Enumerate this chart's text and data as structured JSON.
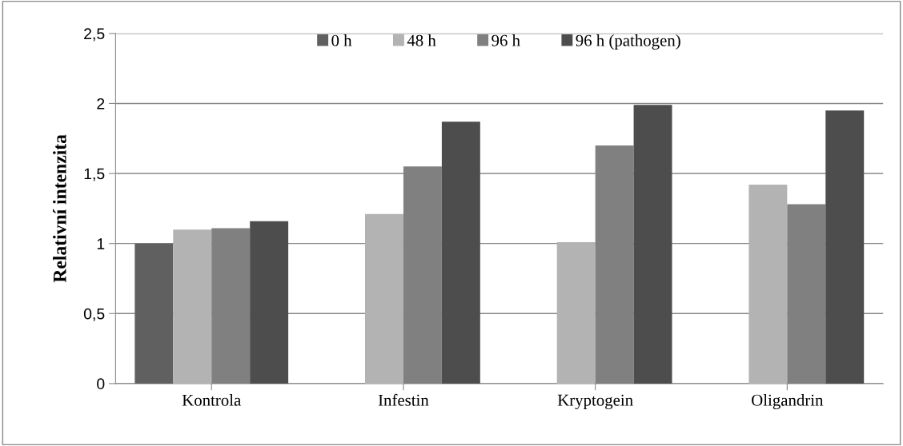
{
  "chart_data": {
    "type": "bar",
    "ylabel": "Relativní intenzita",
    "categories": [
      "Kontrola",
      "Infestin",
      "Kryptogein",
      "Oligandrin"
    ],
    "series": [
      {
        "name": "0 h",
        "color": "#606060",
        "values": [
          1.0,
          null,
          null,
          null
        ]
      },
      {
        "name": "48 h",
        "color": "#b3b3b3",
        "values": [
          1.1,
          1.21,
          1.01,
          1.42
        ]
      },
      {
        "name": "96 h",
        "color": "#808080",
        "values": [
          1.11,
          1.55,
          1.7,
          1.28
        ]
      },
      {
        "name": "96 h (pathogen)",
        "color": "#4d4d4d",
        "values": [
          1.16,
          1.87,
          1.99,
          1.95
        ]
      }
    ],
    "ylim": [
      0,
      2.5
    ],
    "yticks": [
      0,
      {
        "value": 0.5,
        "label": "0,5"
      },
      1,
      {
        "value": 1.5,
        "label": "1,5"
      },
      2,
      {
        "value": 2.5,
        "label": "2,5"
      }
    ],
    "grid": "y",
    "legend": "top"
  }
}
